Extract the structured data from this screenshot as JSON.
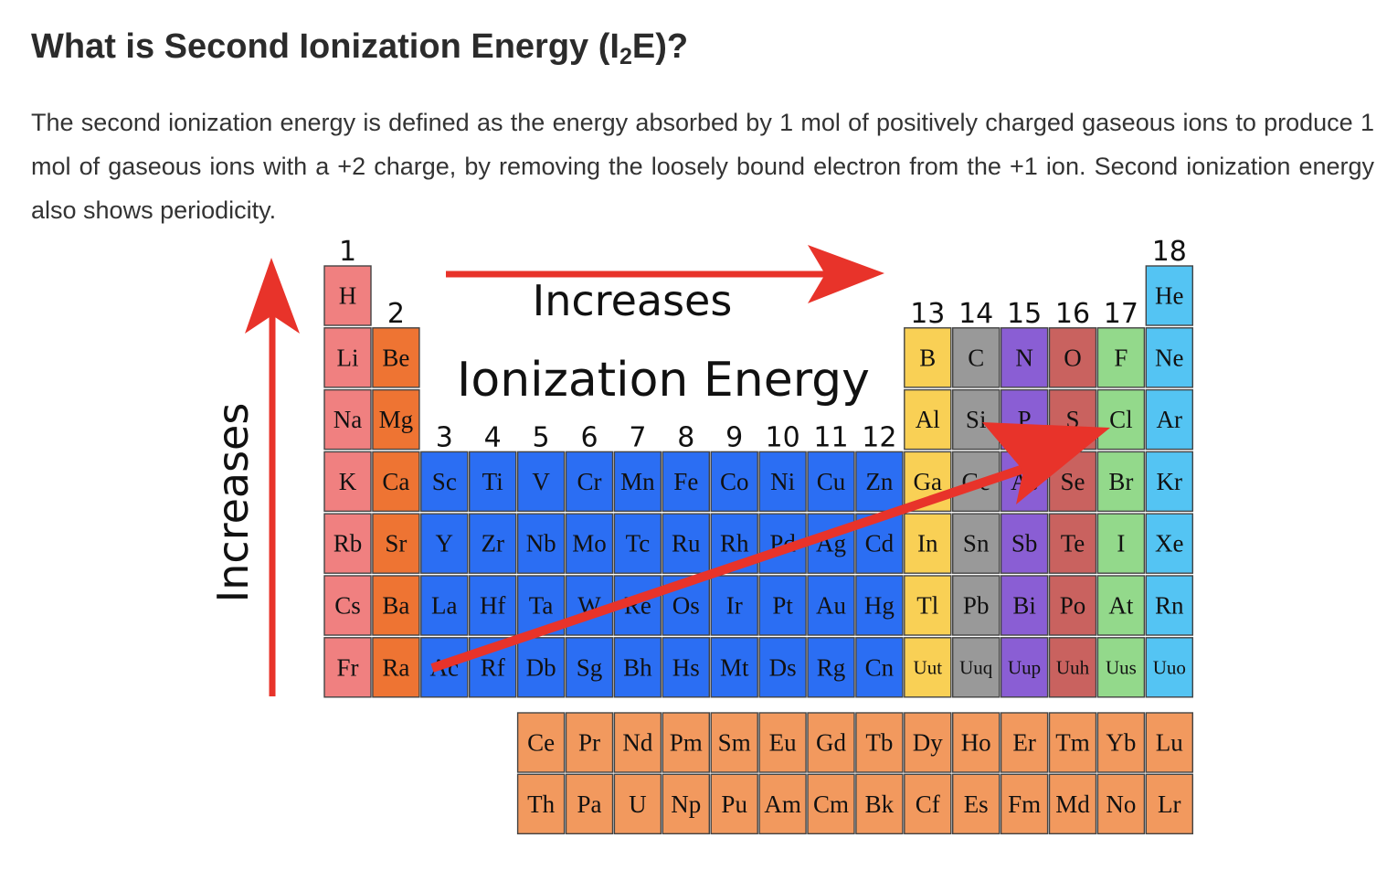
{
  "article": {
    "title_main": "What is Second Ionization Energy (I",
    "title_sub": "2",
    "title_end": "E)?",
    "paragraph": "The second ionization energy is defined as the energy absorbed by 1 mol of positively charged gaseous ions to produce 1 mol of gaseous ions with a +2 charge, by removing the loosely bound electron from the +1 ion. Second ionization energy also shows periodicity."
  },
  "diagram": {
    "label_across_top": "Increases",
    "label_across_bottom": "Ionization Energy",
    "label_vertical": "Increases",
    "colors": {
      "hydrogen": "#f08080",
      "alkali": "#f08080",
      "alkaline": "#ee7433",
      "transition": "#2b6ef3",
      "post_transition": "#f9d055",
      "metalloid": "#999999",
      "nonmetal": "#8a5ed4",
      "chalcogen": "#c9625f",
      "halogen": "#93d98b",
      "noble": "#54c4f3",
      "f_block": "#f2995e",
      "arrow": "#e8332a"
    },
    "group_labels": [
      {
        "text": "1",
        "col": 1,
        "row": 1
      },
      {
        "text": "2",
        "col": 2,
        "row": 2
      },
      {
        "text": "3",
        "col": 3,
        "row": 4
      },
      {
        "text": "4",
        "col": 4,
        "row": 4
      },
      {
        "text": "5",
        "col": 5,
        "row": 4
      },
      {
        "text": "6",
        "col": 6,
        "row": 4
      },
      {
        "text": "7",
        "col": 7,
        "row": 4
      },
      {
        "text": "8",
        "col": 8,
        "row": 4
      },
      {
        "text": "9",
        "col": 9,
        "row": 4
      },
      {
        "text": "10",
        "col": 10,
        "row": 4
      },
      {
        "text": "11",
        "col": 11,
        "row": 4
      },
      {
        "text": "12",
        "col": 12,
        "row": 4
      },
      {
        "text": "13",
        "col": 13,
        "row": 2
      },
      {
        "text": "14",
        "col": 14,
        "row": 2
      },
      {
        "text": "15",
        "col": 15,
        "row": 2
      },
      {
        "text": "16",
        "col": 16,
        "row": 2
      },
      {
        "text": "17",
        "col": 17,
        "row": 2
      },
      {
        "text": "18",
        "col": 18,
        "row": 1
      }
    ],
    "elements": [
      {
        "s": "H",
        "col": 1,
        "row": 1,
        "cat": "hydrogen"
      },
      {
        "s": "He",
        "col": 18,
        "row": 1,
        "cat": "noble"
      },
      {
        "s": "Li",
        "col": 1,
        "row": 2,
        "cat": "alkali"
      },
      {
        "s": "Be",
        "col": 2,
        "row": 2,
        "cat": "alkaline"
      },
      {
        "s": "B",
        "col": 13,
        "row": 2,
        "cat": "post_transition"
      },
      {
        "s": "C",
        "col": 14,
        "row": 2,
        "cat": "metalloid"
      },
      {
        "s": "N",
        "col": 15,
        "row": 2,
        "cat": "nonmetal"
      },
      {
        "s": "O",
        "col": 16,
        "row": 2,
        "cat": "chalcogen"
      },
      {
        "s": "F",
        "col": 17,
        "row": 2,
        "cat": "halogen"
      },
      {
        "s": "Ne",
        "col": 18,
        "row": 2,
        "cat": "noble"
      },
      {
        "s": "Na",
        "col": 1,
        "row": 3,
        "cat": "alkali"
      },
      {
        "s": "Mg",
        "col": 2,
        "row": 3,
        "cat": "alkaline"
      },
      {
        "s": "Al",
        "col": 13,
        "row": 3,
        "cat": "post_transition"
      },
      {
        "s": "Si",
        "col": 14,
        "row": 3,
        "cat": "metalloid"
      },
      {
        "s": "P",
        "col": 15,
        "row": 3,
        "cat": "nonmetal"
      },
      {
        "s": "S",
        "col": 16,
        "row": 3,
        "cat": "chalcogen"
      },
      {
        "s": "Cl",
        "col": 17,
        "row": 3,
        "cat": "halogen"
      },
      {
        "s": "Ar",
        "col": 18,
        "row": 3,
        "cat": "noble"
      },
      {
        "s": "K",
        "col": 1,
        "row": 4,
        "cat": "alkali"
      },
      {
        "s": "Ca",
        "col": 2,
        "row": 4,
        "cat": "alkaline"
      },
      {
        "s": "Sc",
        "col": 3,
        "row": 4,
        "cat": "transition"
      },
      {
        "s": "Ti",
        "col": 4,
        "row": 4,
        "cat": "transition"
      },
      {
        "s": "V",
        "col": 5,
        "row": 4,
        "cat": "transition"
      },
      {
        "s": "Cr",
        "col": 6,
        "row": 4,
        "cat": "transition"
      },
      {
        "s": "Mn",
        "col": 7,
        "row": 4,
        "cat": "transition"
      },
      {
        "s": "Fe",
        "col": 8,
        "row": 4,
        "cat": "transition"
      },
      {
        "s": "Co",
        "col": 9,
        "row": 4,
        "cat": "transition"
      },
      {
        "s": "Ni",
        "col": 10,
        "row": 4,
        "cat": "transition"
      },
      {
        "s": "Cu",
        "col": 11,
        "row": 4,
        "cat": "transition"
      },
      {
        "s": "Zn",
        "col": 12,
        "row": 4,
        "cat": "transition"
      },
      {
        "s": "Ga",
        "col": 13,
        "row": 4,
        "cat": "post_transition"
      },
      {
        "s": "Ge",
        "col": 14,
        "row": 4,
        "cat": "metalloid"
      },
      {
        "s": "As",
        "col": 15,
        "row": 4,
        "cat": "nonmetal"
      },
      {
        "s": "Se",
        "col": 16,
        "row": 4,
        "cat": "chalcogen"
      },
      {
        "s": "Br",
        "col": 17,
        "row": 4,
        "cat": "halogen"
      },
      {
        "s": "Kr",
        "col": 18,
        "row": 4,
        "cat": "noble"
      },
      {
        "s": "Rb",
        "col": 1,
        "row": 5,
        "cat": "alkali"
      },
      {
        "s": "Sr",
        "col": 2,
        "row": 5,
        "cat": "alkaline"
      },
      {
        "s": "Y",
        "col": 3,
        "row": 5,
        "cat": "transition"
      },
      {
        "s": "Zr",
        "col": 4,
        "row": 5,
        "cat": "transition"
      },
      {
        "s": "Nb",
        "col": 5,
        "row": 5,
        "cat": "transition"
      },
      {
        "s": "Mo",
        "col": 6,
        "row": 5,
        "cat": "transition"
      },
      {
        "s": "Tc",
        "col": 7,
        "row": 5,
        "cat": "transition"
      },
      {
        "s": "Ru",
        "col": 8,
        "row": 5,
        "cat": "transition"
      },
      {
        "s": "Rh",
        "col": 9,
        "row": 5,
        "cat": "transition"
      },
      {
        "s": "Pd",
        "col": 10,
        "row": 5,
        "cat": "transition"
      },
      {
        "s": "Ag",
        "col": 11,
        "row": 5,
        "cat": "transition"
      },
      {
        "s": "Cd",
        "col": 12,
        "row": 5,
        "cat": "transition"
      },
      {
        "s": "In",
        "col": 13,
        "row": 5,
        "cat": "post_transition"
      },
      {
        "s": "Sn",
        "col": 14,
        "row": 5,
        "cat": "metalloid"
      },
      {
        "s": "Sb",
        "col": 15,
        "row": 5,
        "cat": "nonmetal"
      },
      {
        "s": "Te",
        "col": 16,
        "row": 5,
        "cat": "chalcogen"
      },
      {
        "s": "I",
        "col": 17,
        "row": 5,
        "cat": "halogen"
      },
      {
        "s": "Xe",
        "col": 18,
        "row": 5,
        "cat": "noble"
      },
      {
        "s": "Cs",
        "col": 1,
        "row": 6,
        "cat": "alkali"
      },
      {
        "s": "Ba",
        "col": 2,
        "row": 6,
        "cat": "alkaline"
      },
      {
        "s": "La",
        "col": 3,
        "row": 6,
        "cat": "transition"
      },
      {
        "s": "Hf",
        "col": 4,
        "row": 6,
        "cat": "transition"
      },
      {
        "s": "Ta",
        "col": 5,
        "row": 6,
        "cat": "transition"
      },
      {
        "s": "W",
        "col": 6,
        "row": 6,
        "cat": "transition"
      },
      {
        "s": "Re",
        "col": 7,
        "row": 6,
        "cat": "transition"
      },
      {
        "s": "Os",
        "col": 8,
        "row": 6,
        "cat": "transition"
      },
      {
        "s": "Ir",
        "col": 9,
        "row": 6,
        "cat": "transition"
      },
      {
        "s": "Pt",
        "col": 10,
        "row": 6,
        "cat": "transition"
      },
      {
        "s": "Au",
        "col": 11,
        "row": 6,
        "cat": "transition"
      },
      {
        "s": "Hg",
        "col": 12,
        "row": 6,
        "cat": "transition"
      },
      {
        "s": "Tl",
        "col": 13,
        "row": 6,
        "cat": "post_transition"
      },
      {
        "s": "Pb",
        "col": 14,
        "row": 6,
        "cat": "metalloid"
      },
      {
        "s": "Bi",
        "col": 15,
        "row": 6,
        "cat": "nonmetal"
      },
      {
        "s": "Po",
        "col": 16,
        "row": 6,
        "cat": "chalcogen"
      },
      {
        "s": "At",
        "col": 17,
        "row": 6,
        "cat": "halogen"
      },
      {
        "s": "Rn",
        "col": 18,
        "row": 6,
        "cat": "noble"
      },
      {
        "s": "Fr",
        "col": 1,
        "row": 7,
        "cat": "alkali"
      },
      {
        "s": "Ra",
        "col": 2,
        "row": 7,
        "cat": "alkaline"
      },
      {
        "s": "Ac",
        "col": 3,
        "row": 7,
        "cat": "transition"
      },
      {
        "s": "Rf",
        "col": 4,
        "row": 7,
        "cat": "transition"
      },
      {
        "s": "Db",
        "col": 5,
        "row": 7,
        "cat": "transition"
      },
      {
        "s": "Sg",
        "col": 6,
        "row": 7,
        "cat": "transition"
      },
      {
        "s": "Bh",
        "col": 7,
        "row": 7,
        "cat": "transition"
      },
      {
        "s": "Hs",
        "col": 8,
        "row": 7,
        "cat": "transition"
      },
      {
        "s": "Mt",
        "col": 9,
        "row": 7,
        "cat": "transition"
      },
      {
        "s": "Ds",
        "col": 10,
        "row": 7,
        "cat": "transition"
      },
      {
        "s": "Rg",
        "col": 11,
        "row": 7,
        "cat": "transition"
      },
      {
        "s": "Cn",
        "col": 12,
        "row": 7,
        "cat": "transition"
      },
      {
        "s": "Uut",
        "col": 13,
        "row": 7,
        "cat": "post_transition",
        "small": true
      },
      {
        "s": "Uuq",
        "col": 14,
        "row": 7,
        "cat": "metalloid",
        "small": true
      },
      {
        "s": "Uup",
        "col": 15,
        "row": 7,
        "cat": "nonmetal",
        "small": true
      },
      {
        "s": "Uuh",
        "col": 16,
        "row": 7,
        "cat": "chalcogen",
        "small": true
      },
      {
        "s": "Uus",
        "col": 17,
        "row": 7,
        "cat": "halogen",
        "small": true
      },
      {
        "s": "Uuo",
        "col": 18,
        "row": 7,
        "cat": "noble",
        "small": true
      },
      {
        "s": "Ce",
        "col": 5,
        "row": 8,
        "cat": "f_block"
      },
      {
        "s": "Pr",
        "col": 6,
        "row": 8,
        "cat": "f_block"
      },
      {
        "s": "Nd",
        "col": 7,
        "row": 8,
        "cat": "f_block"
      },
      {
        "s": "Pm",
        "col": 8,
        "row": 8,
        "cat": "f_block"
      },
      {
        "s": "Sm",
        "col": 9,
        "row": 8,
        "cat": "f_block"
      },
      {
        "s": "Eu",
        "col": 10,
        "row": 8,
        "cat": "f_block"
      },
      {
        "s": "Gd",
        "col": 11,
        "row": 8,
        "cat": "f_block"
      },
      {
        "s": "Tb",
        "col": 12,
        "row": 8,
        "cat": "f_block"
      },
      {
        "s": "Dy",
        "col": 13,
        "row": 8,
        "cat": "f_block"
      },
      {
        "s": "Ho",
        "col": 14,
        "row": 8,
        "cat": "f_block"
      },
      {
        "s": "Er",
        "col": 15,
        "row": 8,
        "cat": "f_block"
      },
      {
        "s": "Tm",
        "col": 16,
        "row": 8,
        "cat": "f_block"
      },
      {
        "s": "Yb",
        "col": 17,
        "row": 8,
        "cat": "f_block"
      },
      {
        "s": "Lu",
        "col": 18,
        "row": 8,
        "cat": "f_block"
      },
      {
        "s": "Th",
        "col": 5,
        "row": 9,
        "cat": "f_block"
      },
      {
        "s": "Pa",
        "col": 6,
        "row": 9,
        "cat": "f_block"
      },
      {
        "s": "U",
        "col": 7,
        "row": 9,
        "cat": "f_block"
      },
      {
        "s": "Np",
        "col": 8,
        "row": 9,
        "cat": "f_block"
      },
      {
        "s": "Pu",
        "col": 9,
        "row": 9,
        "cat": "f_block"
      },
      {
        "s": "Am",
        "col": 10,
        "row": 9,
        "cat": "f_block"
      },
      {
        "s": "Cm",
        "col": 11,
        "row": 9,
        "cat": "f_block"
      },
      {
        "s": "Bk",
        "col": 12,
        "row": 9,
        "cat": "f_block"
      },
      {
        "s": "Cf",
        "col": 13,
        "row": 9,
        "cat": "f_block"
      },
      {
        "s": "Es",
        "col": 14,
        "row": 9,
        "cat": "f_block"
      },
      {
        "s": "Fm",
        "col": 15,
        "row": 9,
        "cat": "f_block"
      },
      {
        "s": "Md",
        "col": 16,
        "row": 9,
        "cat": "f_block"
      },
      {
        "s": "No",
        "col": 17,
        "row": 9,
        "cat": "f_block"
      },
      {
        "s": "Lr",
        "col": 18,
        "row": 9,
        "cat": "f_block"
      }
    ]
  }
}
